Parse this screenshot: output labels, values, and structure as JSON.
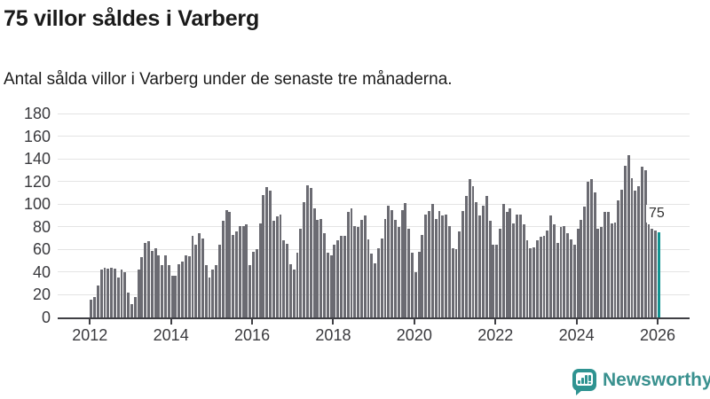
{
  "header": {
    "title": "75 villor såldes i Varberg",
    "subtitle": "Antal sålda villor i Varberg under de senaste tre månaderna."
  },
  "chart_data": {
    "type": "bar",
    "title": "75 villor såldes i Varberg",
    "subtitle": "Antal sålda villor i Varberg under de senaste tre månaderna.",
    "x_start": "2012-01",
    "x_end": "2026-01",
    "x_interval": "monthly",
    "values": [
      16,
      18,
      28,
      42,
      44,
      43,
      44,
      43,
      35,
      42,
      40,
      22,
      12,
      18,
      42,
      53,
      66,
      67,
      59,
      61,
      55,
      46,
      55,
      46,
      37,
      37,
      47,
      49,
      55,
      54,
      72,
      64,
      74,
      70,
      46,
      35,
      42,
      46,
      64,
      85,
      95,
      93,
      73,
      76,
      81,
      81,
      82,
      46,
      58,
      60,
      83,
      108,
      115,
      112,
      85,
      89,
      91,
      68,
      65,
      47,
      42,
      57,
      78,
      102,
      117,
      114,
      96,
      86,
      87,
      74,
      57,
      55,
      64,
      68,
      72,
      72,
      93,
      96,
      81,
      80,
      86,
      90,
      69,
      56,
      48,
      61,
      70,
      87,
      99,
      95,
      86,
      80,
      95,
      101,
      78,
      57,
      40,
      58,
      73,
      91,
      94,
      100,
      87,
      94,
      90,
      91,
      81,
      61,
      60,
      76,
      94,
      107,
      122,
      116,
      102,
      90,
      99,
      107,
      85,
      64,
      64,
      78,
      100,
      93,
      96,
      83,
      91,
      91,
      82,
      68,
      61,
      62,
      68,
      71,
      72,
      77,
      90,
      82,
      66,
      80,
      81,
      74,
      69,
      64,
      78,
      86,
      98,
      120,
      122,
      110,
      78,
      80,
      93,
      93,
      83,
      84,
      103,
      113,
      134,
      143,
      123,
      112,
      116,
      133,
      130,
      82,
      78,
      77,
      75
    ],
    "ylim": [
      0,
      180
    ],
    "yticks": [
      0,
      20,
      40,
      60,
      80,
      100,
      120,
      140,
      160,
      180
    ],
    "xtick_labels": [
      "2012",
      "2014",
      "2016",
      "2018",
      "2020",
      "2022",
      "2024",
      "2026"
    ],
    "xtick_years": [
      2012,
      2014,
      2016,
      2018,
      2020,
      2022,
      2024,
      2026
    ],
    "grid": true,
    "legend": false,
    "bar_color": "#6b6b72",
    "highlight": {
      "index": 168,
      "value": 75,
      "label": "75",
      "color": "#129492"
    }
  },
  "logo": {
    "text": "Newsworthy",
    "icon": "bar-chart-speech-bubble-icon",
    "accent_color": "#2f9391",
    "text_color": "#3a918f"
  },
  "colors": {
    "background": "#ffffff",
    "axis": "#3f3f44",
    "gridline": "#e4e4e4",
    "tick_label": "#3a3a3e",
    "title": "#1a1a1a"
  }
}
